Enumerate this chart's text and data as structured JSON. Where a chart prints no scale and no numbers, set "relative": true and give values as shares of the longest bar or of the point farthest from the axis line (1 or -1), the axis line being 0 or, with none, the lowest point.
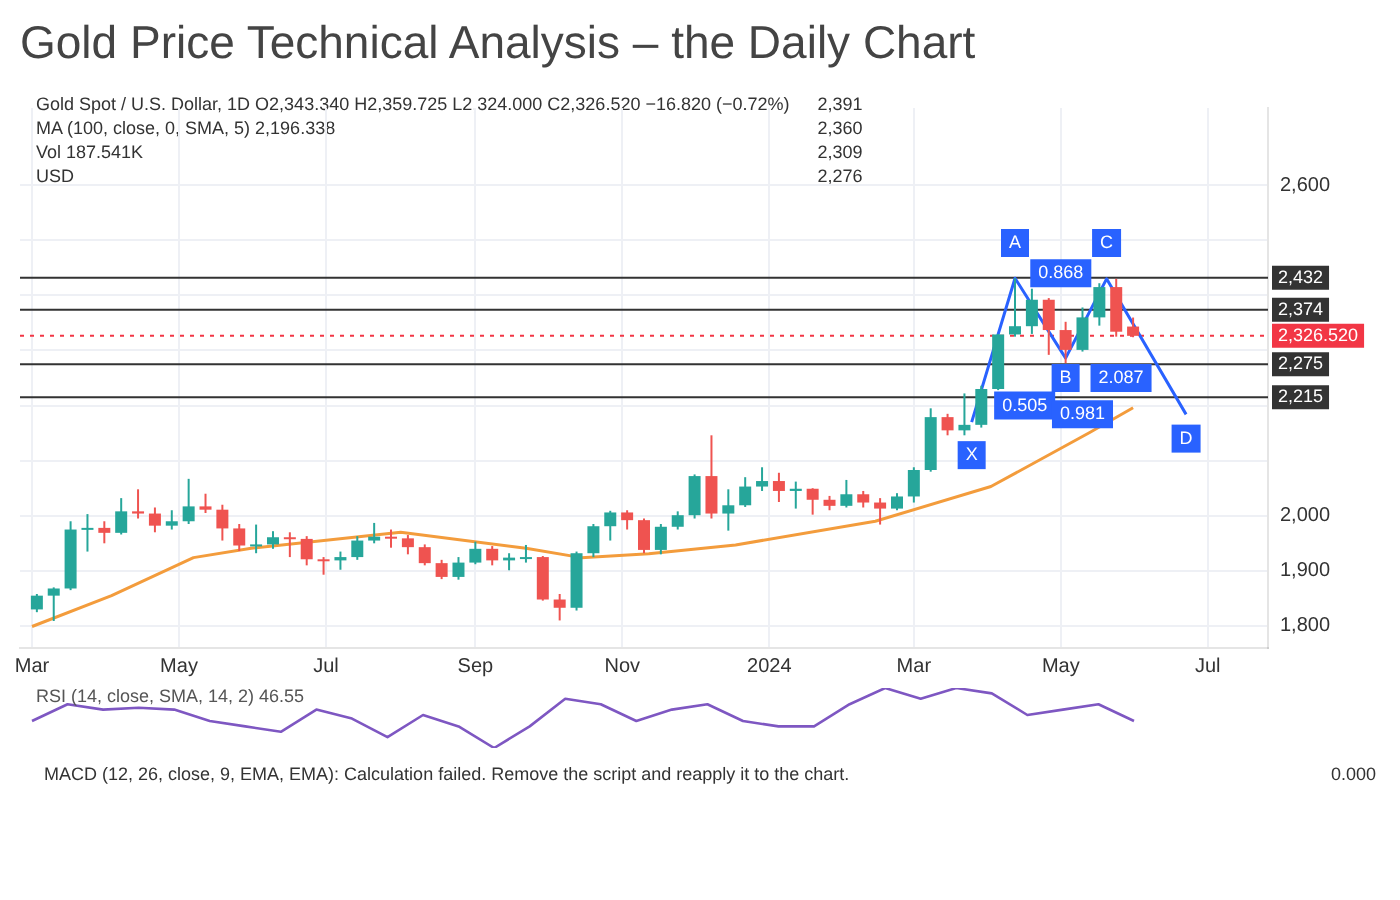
{
  "chart_data": [
    {
      "type": "candlestick",
      "title": "Gold Price Technical Analysis – the Daily Chart",
      "x": [
        "2023-03-03",
        "2023-03-10",
        "2023-03-17",
        "2023-03-24",
        "2023-03-31",
        "2023-04-07",
        "2023-04-14",
        "2023-04-21",
        "2023-04-28",
        "2023-05-05",
        "2023-05-12",
        "2023-05-19",
        "2023-05-26",
        "2023-06-02",
        "2023-06-09",
        "2023-06-16",
        "2023-06-23",
        "2023-06-30",
        "2023-07-07",
        "2023-07-14",
        "2023-07-21",
        "2023-07-28",
        "2023-08-04",
        "2023-08-11",
        "2023-08-18",
        "2023-08-25",
        "2023-09-01",
        "2023-09-08",
        "2023-09-15",
        "2023-09-22",
        "2023-09-29",
        "2023-10-06",
        "2023-10-13",
        "2023-10-20",
        "2023-10-27",
        "2023-11-03",
        "2023-11-10",
        "2023-11-17",
        "2023-11-24",
        "2023-12-01",
        "2023-12-08",
        "2023-12-15",
        "2023-12-22",
        "2023-12-29",
        "2024-01-05",
        "2024-01-12",
        "2024-01-19",
        "2024-01-26",
        "2024-02-02",
        "2024-02-09",
        "2024-02-16",
        "2024-02-23",
        "2024-03-01",
        "2024-03-08",
        "2024-03-15",
        "2024-03-22",
        "2024-03-29",
        "2024-04-05",
        "2024-04-12",
        "2024-04-19",
        "2024-04-26",
        "2024-05-03",
        "2024-05-10",
        "2024-05-17",
        "2024-05-24",
        "2024-05-31"
      ],
      "ohlc": [
        [
          1830,
          1858,
          1825,
          1855
        ],
        [
          1855,
          1870,
          1809,
          1868
        ],
        [
          1868,
          1990,
          1865,
          1975
        ],
        [
          1975,
          2003,
          1935,
          1978
        ],
        [
          1978,
          1990,
          1950,
          1969
        ],
        [
          1969,
          2032,
          1966,
          2008
        ],
        [
          2008,
          2048,
          1995,
          2004
        ],
        [
          2004,
          2015,
          1970,
          1982
        ],
        [
          1982,
          2010,
          1975,
          1990
        ],
        [
          1990,
          2067,
          1985,
          2017
        ],
        [
          2017,
          2040,
          2005,
          2011
        ],
        [
          2011,
          2020,
          1955,
          1977
        ],
        [
          1977,
          1985,
          1936,
          1946
        ],
        [
          1946,
          1984,
          1932,
          1948
        ],
        [
          1948,
          1972,
          1940,
          1961
        ],
        [
          1961,
          1970,
          1925,
          1958
        ],
        [
          1958,
          1963,
          1910,
          1921
        ],
        [
          1921,
          1925,
          1893,
          1919
        ],
        [
          1919,
          1935,
          1902,
          1925
        ],
        [
          1925,
          1963,
          1920,
          1955
        ],
        [
          1955,
          1987,
          1950,
          1962
        ],
        [
          1962,
          1975,
          1942,
          1959
        ],
        [
          1959,
          1965,
          1930,
          1943
        ],
        [
          1943,
          1948,
          1910,
          1914
        ],
        [
          1914,
          1920,
          1885,
          1889
        ],
        [
          1889,
          1925,
          1884,
          1915
        ],
        [
          1915,
          1953,
          1912,
          1940
        ],
        [
          1940,
          1945,
          1910,
          1919
        ],
        [
          1919,
          1932,
          1901,
          1924
        ],
        [
          1924,
          1947,
          1915,
          1925
        ],
        [
          1925,
          1927,
          1846,
          1848
        ],
        [
          1848,
          1858,
          1810,
          1833
        ],
        [
          1833,
          1935,
          1828,
          1932
        ],
        [
          1932,
          1985,
          1925,
          1981
        ],
        [
          1981,
          2009,
          1955,
          2006
        ],
        [
          2006,
          2010,
          1975,
          1992
        ],
        [
          1992,
          1995,
          1932,
          1938
        ],
        [
          1938,
          1985,
          1930,
          1980
        ],
        [
          1980,
          2008,
          1975,
          2001
        ],
        [
          2001,
          2075,
          1995,
          2072
        ],
        [
          2072,
          2146,
          1995,
          2004
        ],
        [
          2004,
          2048,
          1973,
          2019
        ],
        [
          2019,
          2070,
          2016,
          2053
        ],
        [
          2053,
          2088,
          2045,
          2063
        ],
        [
          2063,
          2078,
          2025,
          2045
        ],
        [
          2045,
          2062,
          2013,
          2049
        ],
        [
          2049,
          2050,
          2002,
          2029
        ],
        [
          2029,
          2036,
          2010,
          2018
        ],
        [
          2018,
          2065,
          2015,
          2039
        ],
        [
          2039,
          2045,
          2015,
          2024
        ],
        [
          2024,
          2032,
          1984,
          2013
        ],
        [
          2013,
          2041,
          2010,
          2035
        ],
        [
          2035,
          2088,
          2024,
          2083
        ],
        [
          2083,
          2195,
          2080,
          2179
        ],
        [
          2179,
          2185,
          2146,
          2155
        ],
        [
          2155,
          2222,
          2146,
          2165
        ],
        [
          2165,
          2236,
          2160,
          2230
        ],
        [
          2230,
          2330,
          2228,
          2329
        ],
        [
          2329,
          2431,
          2325,
          2344
        ],
        [
          2344,
          2412,
          2330,
          2392
        ],
        [
          2392,
          2395,
          2292,
          2337
        ],
        [
          2337,
          2352,
          2277,
          2301
        ],
        [
          2301,
          2378,
          2298,
          2360
        ],
        [
          2360,
          2422,
          2345,
          2415
        ],
        [
          2415,
          2430,
          2325,
          2334
        ],
        [
          2343.34,
          2359.725,
          2324,
          2326.52
        ]
      ],
      "series": [
        {
          "type": "line",
          "color": "#f39c3c",
          "x": [
            "2023-03-01",
            "2023-04-03",
            "2023-05-07",
            "2023-05-31",
            "2023-08-01",
            "2023-09-22",
            "2023-10-15",
            "2023-11-12",
            "2023-12-18",
            "2024-02-14",
            "2024-04-02",
            "2024-05-13",
            "2024-05-31"
          ],
          "values": [
            1799,
            1855,
            1924,
            1941,
            1970,
            1941,
            1924,
            1931,
            1947,
            1990,
            2053,
            2151,
            2196
          ]
        },
        {
          "type": "line",
          "color": "#2962ff",
          "x": [
            "2024-03-25",
            "2024-04-12",
            "2024-05-03",
            "2024-05-20",
            "2024-06-22"
          ],
          "values": [
            2170,
            2431,
            2286,
            2430,
            2184
          ]
        }
      ],
      "xlim": [
        "2023-02-24",
        "2024-07-26"
      ],
      "xticks": [
        {
          "value": "2023-03-01",
          "label": "Mar"
        },
        {
          "value": "2023-05-01",
          "label": "May"
        },
        {
          "value": "2023-07-01",
          "label": "Jul"
        },
        {
          "value": "2023-09-01",
          "label": "Sep"
        },
        {
          "value": "2023-11-01",
          "label": "Nov"
        },
        {
          "value": "2024-01-01",
          "label": "2024"
        },
        {
          "value": "2024-03-01",
          "label": "Mar"
        },
        {
          "value": "2024-05-01",
          "label": "May"
        },
        {
          "value": "2024-07-01",
          "label": "Jul"
        }
      ],
      "ylim": [
        1760,
        2740
      ],
      "yticks": [
        {
          "value": 1800,
          "label": "1,800"
        },
        {
          "value": 1900,
          "label": "1,900"
        },
        {
          "value": 2000,
          "label": "2,000"
        },
        {
          "value": 2100,
          "label": null
        },
        {
          "value": 2200,
          "label": null
        },
        {
          "value": 2300,
          "label": null
        },
        {
          "value": 2400,
          "label": null
        },
        {
          "value": 2500,
          "label": null
        },
        {
          "value": 2600,
          "label": "2,600"
        }
      ],
      "grid": true,
      "ref_lines": [
        {
          "axis": "y",
          "value": 2432,
          "label": "2,432",
          "color": "#333333"
        },
        {
          "axis": "y",
          "value": 2374,
          "label": "2,374",
          "color": "#333333"
        },
        {
          "axis": "y",
          "value": 2275,
          "label": "2,275",
          "color": "#333333"
        },
        {
          "axis": "y",
          "value": 2215,
          "label": "2,215",
          "color": "#333333"
        },
        {
          "axis": "y",
          "value": 2326.52,
          "label": "2,326.520",
          "color": "#f23645",
          "line_style": "dotted"
        }
      ],
      "annotations": [
        "Gold Spot / U.S. Dollar, 1D  O2,343.340 H2,359.725 L2,324.000 C2,326.520 −16.820 (−0.72%)",
        "MA (100, close, 0, SMA, 5)  2,196.338",
        "Vol 187.541K",
        "USD",
        "2,391",
        "2,360",
        "2,309",
        "2,276",
        {
          "text": "X",
          "x": "2024-03-25",
          "y": 2110
        },
        {
          "text": "A",
          "x": "2024-04-12",
          "y": 2495
        },
        {
          "text": "B",
          "x": "2024-05-03",
          "y": 2250
        },
        {
          "text": "C",
          "x": "2024-05-20",
          "y": 2495
        },
        {
          "text": "D",
          "x": "2024-06-22",
          "y": 2140
        },
        {
          "text": "0.868",
          "x": "2024-05-01",
          "y": 2440
        },
        {
          "text": "0.505",
          "x": "2024-04-16",
          "y": 2200
        },
        {
          "text": "2.087",
          "x": "2024-05-26",
          "y": 2250
        },
        {
          "text": "0.981",
          "x": "2024-05-10",
          "y": 2184
        }
      ]
    },
    {
      "type": "line",
      "relative": true,
      "color": "#7e57c2",
      "categories": [
        null,
        null,
        null,
        null,
        null,
        null,
        null,
        null,
        null,
        null,
        null,
        null,
        null,
        null,
        null,
        null,
        null,
        null,
        null,
        null,
        null,
        null,
        null,
        null,
        null,
        null,
        null,
        null,
        null,
        null,
        null,
        null
      ],
      "values": [
        0.45,
        0.73,
        0.64,
        0.67,
        0.64,
        0.45,
        0.36,
        0.27,
        0.64,
        0.49,
        0.18,
        0.55,
        0.36,
        0,
        0.36,
        0.82,
        0.73,
        0.45,
        0.64,
        0.73,
        0.45,
        0.36,
        0.36,
        0.73,
        1,
        0.82,
        1,
        0.91,
        0.55,
        0.64,
        0.73,
        0.45
      ],
      "annotations": [
        "RSI (14, close, SMA, 14, 2)  46.55"
      ]
    },
    {
      "type": "other",
      "annotations": [
        "MACD (12, 26, close, 9, EMA, EMA): Calculation failed. Remove the script and reapply it to the chart.",
        "0.000"
      ]
    }
  ]
}
